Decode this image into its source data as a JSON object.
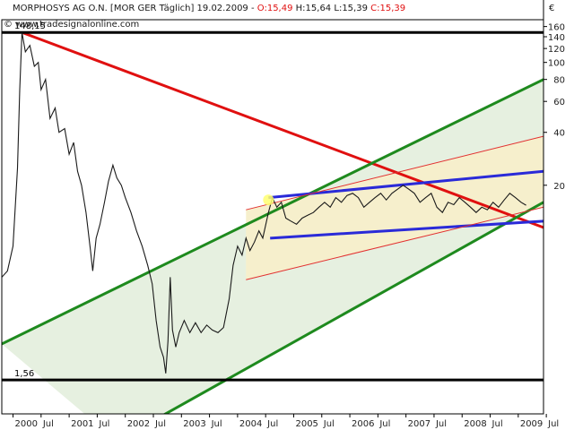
{
  "chart_data": {
    "type": "line",
    "title": {
      "symbol": "MORPHOSYS AG O.N. [MOR GER  Täglich] 19.02.2009 - ",
      "open": "O:15,49",
      "high": "H:15,64",
      "low": "L:15,39",
      "close": "C:15,39"
    },
    "watermark": "© www.tradesignalonline.com",
    "currency": "€",
    "y_scale": "log",
    "ylim": [
      1,
      175
    ],
    "xlim": [
      1999.8,
      2009.45
    ],
    "y_ticks": [
      160,
      140,
      120,
      100,
      80,
      60,
      40,
      20
    ],
    "x_tick_labels": [
      {
        "x": 2000.0,
        "label": "2000"
      },
      {
        "x": 2000.5,
        "label": "Jul"
      },
      {
        "x": 2001.0,
        "label": "2001"
      },
      {
        "x": 2001.5,
        "label": "Jul"
      },
      {
        "x": 2002.0,
        "label": "2002"
      },
      {
        "x": 2002.5,
        "label": "Jul"
      },
      {
        "x": 2003.0,
        "label": "2003"
      },
      {
        "x": 2003.5,
        "label": "Jul"
      },
      {
        "x": 2004.0,
        "label": "2004"
      },
      {
        "x": 2004.5,
        "label": "Jul"
      },
      {
        "x": 2005.0,
        "label": "2005"
      },
      {
        "x": 2005.5,
        "label": "Jul"
      },
      {
        "x": 2006.0,
        "label": "2006"
      },
      {
        "x": 2006.5,
        "label": "Jul"
      },
      {
        "x": 2007.0,
        "label": "2007"
      },
      {
        "x": 2007.5,
        "label": "Jul"
      },
      {
        "x": 2008.0,
        "label": "2008"
      },
      {
        "x": 2008.5,
        "label": "Jul"
      },
      {
        "x": 2009.0,
        "label": "2009"
      },
      {
        "x": 2009.5,
        "label": "Jul"
      }
    ],
    "levels": [
      {
        "value": 148.15,
        "label": "148,15"
      },
      {
        "value": 1.56,
        "label": "1,56"
      }
    ],
    "colors": {
      "price": "#1a1a1a",
      "downtrend": "#e01010",
      "channel_major": "#1e8a1e",
      "channel_minor": "#2a2ad8",
      "channel_thin": "#e23030",
      "fill_green": "#e6f0e0",
      "fill_yellow": "#f6efcc",
      "level_line": "#000000"
    },
    "price_series": [
      [
        1999.8,
        6.0
      ],
      [
        1999.9,
        6.5
      ],
      [
        2000.0,
        9.0
      ],
      [
        2000.08,
        25.0
      ],
      [
        2000.12,
        70.0
      ],
      [
        2000.16,
        148.15
      ],
      [
        2000.22,
        115.0
      ],
      [
        2000.3,
        125.0
      ],
      [
        2000.38,
        95.0
      ],
      [
        2000.45,
        100.0
      ],
      [
        2000.5,
        70.0
      ],
      [
        2000.58,
        80.0
      ],
      [
        2000.66,
        48.0
      ],
      [
        2000.75,
        55.0
      ],
      [
        2000.82,
        40.0
      ],
      [
        2000.92,
        42.0
      ],
      [
        2001.0,
        30.0
      ],
      [
        2001.08,
        35.0
      ],
      [
        2001.15,
        24.0
      ],
      [
        2001.22,
        20.0
      ],
      [
        2001.3,
        14.0
      ],
      [
        2001.38,
        8.5
      ],
      [
        2001.42,
        6.5
      ],
      [
        2001.48,
        10.0
      ],
      [
        2001.55,
        12.0
      ],
      [
        2001.63,
        16.0
      ],
      [
        2001.7,
        21.0
      ],
      [
        2001.78,
        26.0
      ],
      [
        2001.85,
        22.0
      ],
      [
        2001.93,
        20.0
      ],
      [
        2002.0,
        17.0
      ],
      [
        2002.1,
        14.0
      ],
      [
        2002.2,
        11.0
      ],
      [
        2002.3,
        9.0
      ],
      [
        2002.4,
        7.0
      ],
      [
        2002.48,
        5.5
      ],
      [
        2002.55,
        3.4
      ],
      [
        2002.62,
        2.4
      ],
      [
        2002.68,
        2.1
      ],
      [
        2002.72,
        1.7
      ],
      [
        2002.76,
        2.6
      ],
      [
        2002.8,
        6.0
      ],
      [
        2002.84,
        3.0
      ],
      [
        2002.9,
        2.4
      ],
      [
        2002.96,
        2.9
      ],
      [
        2003.05,
        3.4
      ],
      [
        2003.15,
        2.9
      ],
      [
        2003.25,
        3.3
      ],
      [
        2003.35,
        2.9
      ],
      [
        2003.45,
        3.2
      ],
      [
        2003.55,
        3.0
      ],
      [
        2003.65,
        2.9
      ],
      [
        2003.75,
        3.1
      ],
      [
        2003.85,
        4.5
      ],
      [
        2003.92,
        7.0
      ],
      [
        2004.0,
        9.0
      ],
      [
        2004.08,
        8.0
      ],
      [
        2004.15,
        10.0
      ],
      [
        2004.22,
        8.5
      ],
      [
        2004.3,
        9.5
      ],
      [
        2004.38,
        11.0
      ],
      [
        2004.45,
        10.0
      ],
      [
        2004.55,
        14.0
      ],
      [
        2004.62,
        17.0
      ],
      [
        2004.7,
        15.0
      ],
      [
        2004.78,
        16.0
      ],
      [
        2004.86,
        13.0
      ],
      [
        2004.95,
        12.5
      ],
      [
        2005.05,
        12.0
      ],
      [
        2005.15,
        13.0
      ],
      [
        2005.25,
        13.5
      ],
      [
        2005.35,
        14.0
      ],
      [
        2005.45,
        15.0
      ],
      [
        2005.55,
        16.0
      ],
      [
        2005.65,
        15.0
      ],
      [
        2005.75,
        17.0
      ],
      [
        2005.85,
        16.0
      ],
      [
        2005.95,
        17.5
      ],
      [
        2006.05,
        18.0
      ],
      [
        2006.15,
        17.0
      ],
      [
        2006.25,
        15.0
      ],
      [
        2006.35,
        16.0
      ],
      [
        2006.45,
        17.0
      ],
      [
        2006.55,
        18.0
      ],
      [
        2006.65,
        16.5
      ],
      [
        2006.75,
        18.0
      ],
      [
        2006.85,
        19.0
      ],
      [
        2006.95,
        20.0
      ],
      [
        2007.05,
        19.0
      ],
      [
        2007.15,
        18.0
      ],
      [
        2007.25,
        16.0
      ],
      [
        2007.35,
        17.0
      ],
      [
        2007.45,
        18.0
      ],
      [
        2007.55,
        15.0
      ],
      [
        2007.65,
        14.0
      ],
      [
        2007.75,
        16.0
      ],
      [
        2007.85,
        15.5
      ],
      [
        2007.95,
        17.0
      ],
      [
        2008.05,
        16.0
      ],
      [
        2008.15,
        15.0
      ],
      [
        2008.25,
        14.0
      ],
      [
        2008.35,
        15.0
      ],
      [
        2008.45,
        14.5
      ],
      [
        2008.55,
        16.0
      ],
      [
        2008.65,
        15.0
      ],
      [
        2008.75,
        16.5
      ],
      [
        2008.85,
        18.0
      ],
      [
        2008.95,
        17.0
      ],
      [
        2009.05,
        16.0
      ],
      [
        2009.14,
        15.39
      ]
    ],
    "trendlines": [
      {
        "name": "downtrend",
        "color": "#e01010",
        "width": 3,
        "points": [
          [
            2000.16,
            148.0
          ],
          [
            2009.45,
            11.5
          ]
        ]
      },
      {
        "name": "green-upper",
        "color": "#1e8a1e",
        "width": 3,
        "points": [
          [
            1999.8,
            2.5
          ],
          [
            2009.45,
            80.0
          ]
        ]
      },
      {
        "name": "green-lower",
        "color": "#1e8a1e",
        "width": 3,
        "points": [
          [
            2001.85,
            0.7
          ],
          [
            2009.45,
            16.0
          ]
        ]
      },
      {
        "name": "blue-upper",
        "color": "#2a2ad8",
        "width": 3,
        "points": [
          [
            2004.55,
            17.0
          ],
          [
            2009.45,
            24.0
          ]
        ]
      },
      {
        "name": "blue-lower",
        "color": "#2a2ad8",
        "width": 3,
        "points": [
          [
            2004.58,
            10.0
          ],
          [
            2009.45,
            12.5
          ]
        ]
      },
      {
        "name": "red-thin-upper",
        "color": "#e23030",
        "width": 1,
        "points": [
          [
            2004.15,
            14.5
          ],
          [
            2009.45,
            38.0
          ]
        ]
      },
      {
        "name": "red-thin-lower",
        "color": "#e23030",
        "width": 1,
        "points": [
          [
            2004.15,
            5.8
          ],
          [
            2009.45,
            15.0
          ]
        ]
      }
    ],
    "fills": [
      {
        "name": "green-channel",
        "color": "#e6f0e0",
        "points": [
          [
            1999.8,
            2.5
          ],
          [
            2009.45,
            80.0
          ],
          [
            2009.45,
            16.0
          ],
          [
            2001.85,
            0.7
          ]
        ]
      },
      {
        "name": "yellow-channel",
        "color": "#f6efcc",
        "points": [
          [
            2004.15,
            14.5
          ],
          [
            2009.45,
            38.0
          ],
          [
            2009.45,
            15.0
          ],
          [
            2004.15,
            5.8
          ]
        ]
      }
    ],
    "markers": [
      {
        "name": "buy-point",
        "x": 2004.55,
        "y": 16.5,
        "color": "#ffff70"
      }
    ]
  }
}
